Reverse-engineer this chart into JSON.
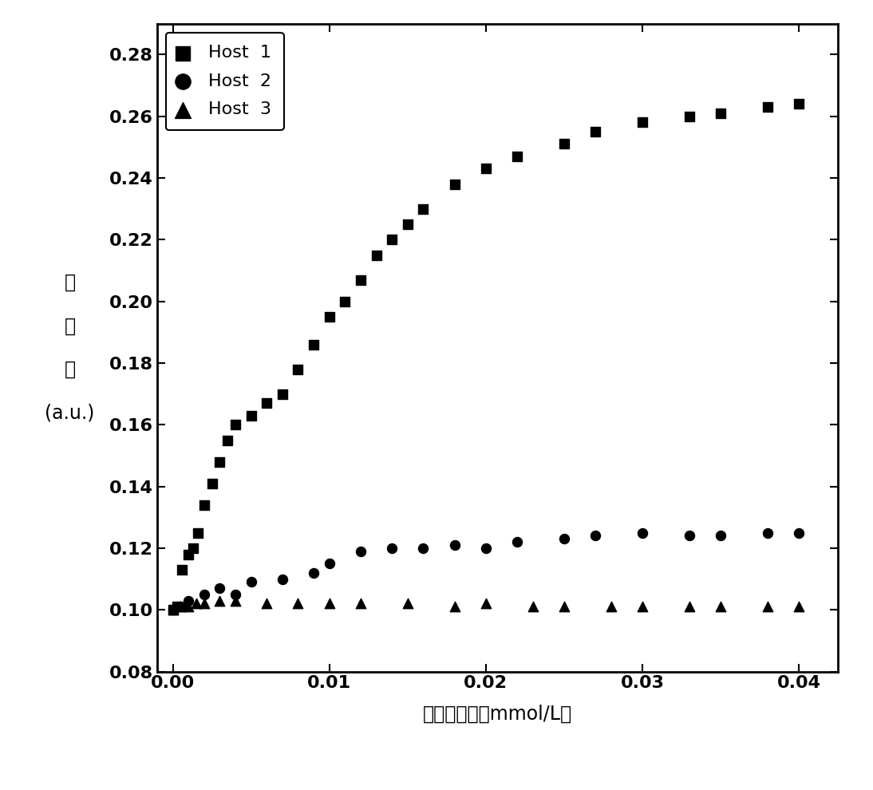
{
  "host1_x": [
    0.0,
    0.0003,
    0.0006,
    0.001,
    0.0013,
    0.0016,
    0.002,
    0.0025,
    0.003,
    0.0035,
    0.004,
    0.005,
    0.006,
    0.007,
    0.008,
    0.009,
    0.01,
    0.011,
    0.012,
    0.013,
    0.014,
    0.015,
    0.016,
    0.018,
    0.02,
    0.022,
    0.025,
    0.027,
    0.03,
    0.033,
    0.035,
    0.038,
    0.04
  ],
  "host1_y": [
    0.1,
    0.101,
    0.113,
    0.118,
    0.12,
    0.125,
    0.134,
    0.141,
    0.148,
    0.155,
    0.16,
    0.163,
    0.167,
    0.17,
    0.178,
    0.186,
    0.195,
    0.2,
    0.207,
    0.215,
    0.22,
    0.225,
    0.23,
    0.238,
    0.243,
    0.247,
    0.251,
    0.255,
    0.258,
    0.26,
    0.261,
    0.263,
    0.264
  ],
  "host2_x": [
    0.0,
    0.0005,
    0.001,
    0.002,
    0.003,
    0.004,
    0.005,
    0.007,
    0.009,
    0.01,
    0.012,
    0.014,
    0.016,
    0.018,
    0.02,
    0.022,
    0.025,
    0.027,
    0.03,
    0.033,
    0.035,
    0.038,
    0.04
  ],
  "host2_y": [
    0.1,
    0.101,
    0.103,
    0.105,
    0.107,
    0.105,
    0.109,
    0.11,
    0.112,
    0.115,
    0.119,
    0.12,
    0.12,
    0.121,
    0.12,
    0.122,
    0.123,
    0.124,
    0.125,
    0.124,
    0.124,
    0.125,
    0.125
  ],
  "host3_x": [
    0.0,
    0.0005,
    0.001,
    0.0015,
    0.002,
    0.003,
    0.004,
    0.006,
    0.008,
    0.01,
    0.012,
    0.015,
    0.018,
    0.02,
    0.023,
    0.025,
    0.028,
    0.03,
    0.033,
    0.035,
    0.038,
    0.04
  ],
  "host3_y": [
    0.1,
    0.101,
    0.101,
    0.102,
    0.102,
    0.103,
    0.103,
    0.102,
    0.102,
    0.102,
    0.102,
    0.102,
    0.101,
    0.102,
    0.101,
    0.101,
    0.101,
    0.101,
    0.101,
    0.101,
    0.101,
    0.101
  ],
  "xlabel": "阴离子浓度（mmol/L）",
  "ylabel_lines": [
    "吸",
    "光",
    "度",
    "(a.u.)"
  ],
  "xlim": [
    -0.001,
    0.0425
  ],
  "ylim": [
    0.08,
    0.29
  ],
  "yticks": [
    0.08,
    0.1,
    0.12,
    0.14,
    0.16,
    0.18,
    0.2,
    0.22,
    0.24,
    0.26,
    0.28
  ],
  "xticks": [
    0.0,
    0.01,
    0.02,
    0.03,
    0.04
  ],
  "legend_labels": [
    "Host  1",
    "Host  2",
    "Host  3"
  ],
  "marker_size_sq": 70,
  "marker_size_circle": 75,
  "marker_size_tri": 80,
  "background_color": "#ffffff",
  "text_color": "#000000",
  "tick_fontsize": 16,
  "label_fontsize": 17,
  "legend_fontsize": 16
}
